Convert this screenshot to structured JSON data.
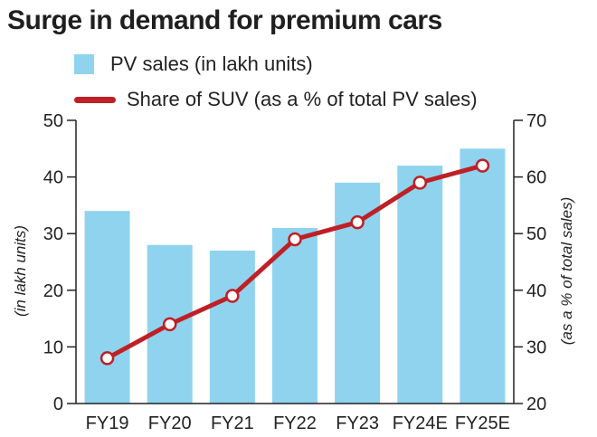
{
  "title": "Surge in demand for premium cars",
  "colors": {
    "bar": "#8fd3ee",
    "line": "#be2026",
    "marker_fill": "#ffffff"
  },
  "chart_data": {
    "type": "bar+line",
    "categories": [
      "FY19",
      "FY20",
      "FY21",
      "FY22",
      "FY23",
      "FY24E",
      "FY25E"
    ],
    "series": [
      {
        "name": "PV sales (in lakh units)",
        "type": "bar",
        "axis": "left",
        "values": [
          34,
          28,
          27,
          31,
          39,
          42,
          45
        ]
      },
      {
        "name": "Share of SUV (as a % of total PV sales)",
        "type": "line",
        "axis": "right",
        "values": [
          28,
          34,
          39,
          49,
          52,
          59,
          62
        ]
      }
    ],
    "y_left": {
      "label": "(in lakh units)",
      "range": [
        0,
        50
      ],
      "ticks": [
        0,
        10,
        20,
        30,
        40,
        50
      ]
    },
    "y_right": {
      "label": "(as a % of total sales)",
      "range": [
        20,
        70
      ],
      "ticks": [
        20,
        30,
        40,
        50,
        60,
        70
      ]
    },
    "grid": false,
    "legend": "top"
  }
}
